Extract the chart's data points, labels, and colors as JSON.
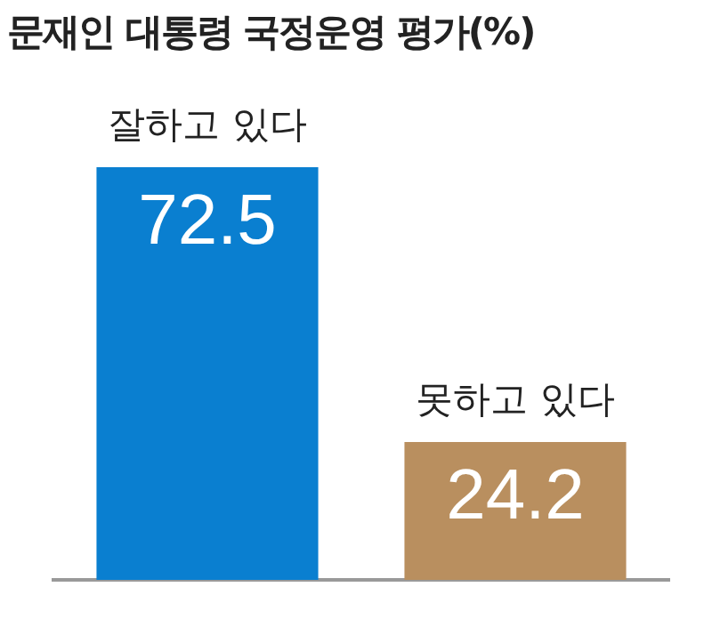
{
  "chart_data": {
    "type": "bar",
    "title": "문재인 대통령 국정운영 평가(%)",
    "categories": [
      "잘하고 있다",
      "못하고 있다"
    ],
    "values": [
      72.5,
      24.2
    ],
    "colors": [
      "#0a7fd0",
      "#b98f5f"
    ],
    "data_labels": true,
    "grid": false,
    "legend": false
  }
}
